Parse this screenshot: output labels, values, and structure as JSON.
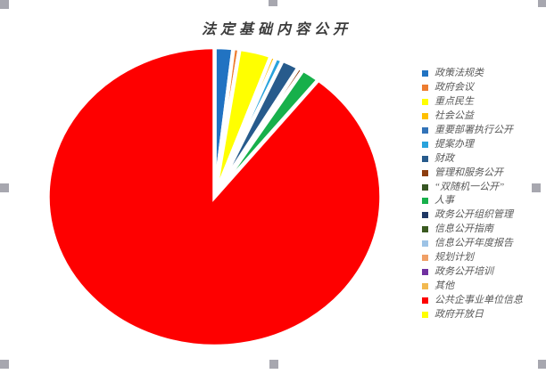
{
  "title": "法定基础内容公开",
  "chart_data": {
    "type": "pie",
    "title": "法定基础内容公开",
    "legend_position": "right",
    "start_angle_deg": 0,
    "clockwise": true,
    "values_unit": "percent (estimated from slice angles; no data labels shown)",
    "categories": [
      "政策法规类",
      "政府会议",
      "重点民生",
      "社会公益",
      "重要部署执行公开",
      "提案办理",
      "财政",
      "管理和服务公开",
      "“双随机一公开”",
      "人事",
      "政务公开组织管理",
      "信息公开指南",
      "信息公开年度报告",
      "规划计划",
      "政务公开培训",
      "其他",
      "公共企事业单位信息",
      "政府开放日"
    ],
    "values": [
      1.8,
      0.6,
      3.1,
      0.5,
      0,
      0.7,
      1.7,
      0.5,
      0,
      1.8,
      0,
      0,
      0,
      0,
      0,
      0,
      89.3,
      0
    ],
    "colors": [
      "#2173C2",
      "#ED7D31",
      "#FFFF00",
      "#FFC000",
      "#3273B8",
      "#29A3DC",
      "#275B8C",
      "#8C3D0E",
      "#375623",
      "#17B04B",
      "#1F3864",
      "#3A5A20",
      "#9DC3E6",
      "#F0A067",
      "#7030A0",
      "#F2B950",
      "#FE0000",
      "#FFFF00"
    ]
  }
}
